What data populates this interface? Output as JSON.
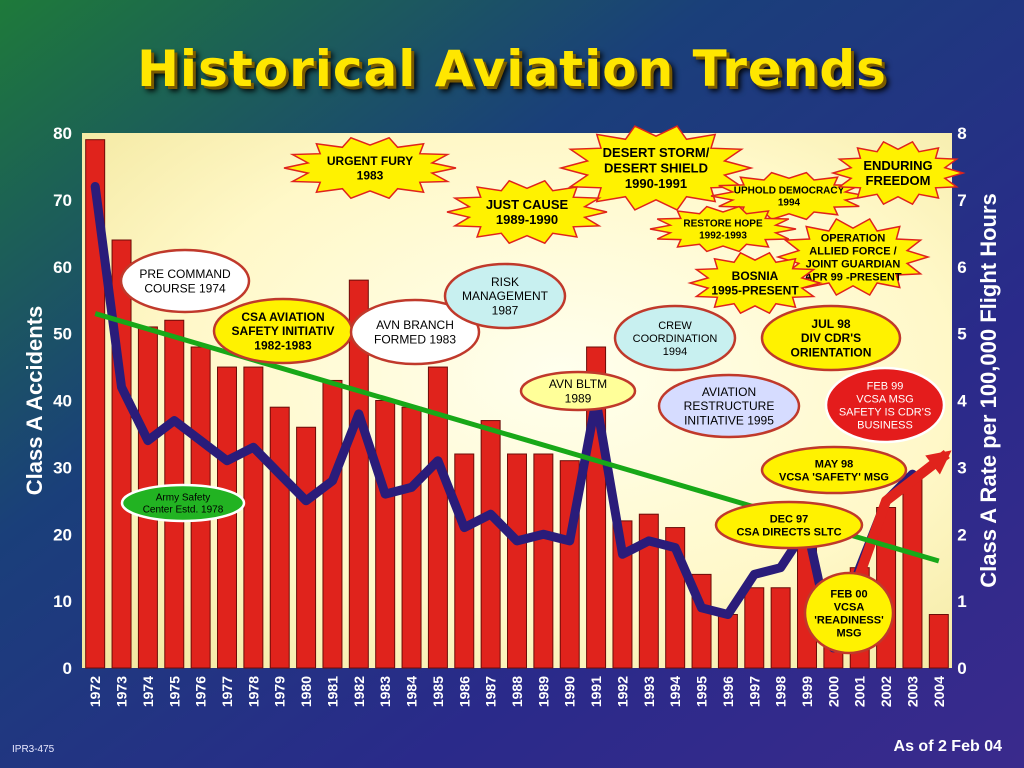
{
  "page": {
    "footer_left": "IPR3-475",
    "footer_right": "As of 2 Feb 04"
  },
  "chart_data": {
    "type": "bar",
    "title": "Historical Aviation Trends",
    "ylabel": "Class A Accidents",
    "ylabel_right": "Class A Rate per 100,000 Flight Hours",
    "ylim": [
      0,
      80
    ],
    "ylim_right": [
      0,
      8
    ],
    "yticks": [
      0,
      10,
      20,
      30,
      40,
      50,
      60,
      70,
      80
    ],
    "yticks_right": [
      0,
      1,
      2,
      3,
      4,
      5,
      6,
      7,
      8
    ],
    "categories": [
      "1972",
      "1973",
      "1974",
      "1975",
      "1976",
      "1977",
      "1978",
      "1979",
      "1980",
      "1981",
      "1982",
      "1983",
      "1984",
      "1985",
      "1986",
      "1987",
      "1988",
      "1989",
      "1990",
      "1991",
      "1992",
      "1993",
      "1994",
      "1995",
      "1996",
      "1997",
      "1998",
      "1999",
      "2000",
      "2001",
      "2002",
      "2003",
      "2004"
    ],
    "series": [
      {
        "values": [
          79,
          64,
          51,
          52,
          48,
          45,
          45,
          39,
          36,
          43,
          58,
          40,
          39,
          45,
          32,
          37,
          32,
          32,
          31,
          48,
          22,
          23,
          21,
          14,
          8,
          12,
          12,
          19,
          6,
          15,
          24,
          29,
          8
        ]
      },
      {
        "axis": "right",
        "values": [
          7.2,
          4.2,
          3.4,
          3.7,
          3.4,
          3.1,
          3.3,
          2.9,
          2.5,
          2.8,
          3.8,
          2.6,
          2.7,
          3.1,
          2.1,
          2.3,
          1.9,
          2.0,
          1.9,
          4.0,
          1.7,
          1.9,
          1.8,
          0.9,
          0.8,
          1.4,
          1.5,
          2.1,
          0.3,
          1.5,
          2.5,
          2.9,
          3.2
        ]
      }
    ],
    "trend": {
      "x": [
        "1972",
        "2004"
      ],
      "y": [
        53,
        16
      ]
    },
    "annotations": [
      {
        "lines": [
          "URGENT FURY",
          "1983"
        ],
        "shape": "burst",
        "fill": "#fff200"
      },
      {
        "lines": [
          "DESERT STORM/",
          "DESERT SHIELD",
          "1990-1991"
        ],
        "shape": "burst",
        "fill": "#fff200"
      },
      {
        "lines": [
          "JUST CAUSE",
          "1989-1990"
        ],
        "shape": "burst",
        "fill": "#fff200"
      },
      {
        "lines": [
          "UPHOLD DEMOCRACY",
          "1994"
        ],
        "shape": "burst",
        "fill": "#fff200"
      },
      {
        "lines": [
          "RESTORE HOPE",
          "1992-1993"
        ],
        "shape": "burst",
        "fill": "#fff200"
      },
      {
        "lines": [
          "ENDURING",
          "FREEDOM"
        ],
        "shape": "burst",
        "fill": "#fff200"
      },
      {
        "lines": [
          "OPERATION",
          "ALLIED FORCE /",
          "JOINT GUARDIAN",
          "APR 99 -PRESENT"
        ],
        "shape": "burst",
        "fill": "#fff200"
      },
      {
        "lines": [
          "BOSNIA",
          "1995-PRESENT"
        ],
        "shape": "burst",
        "fill": "#fff200"
      },
      {
        "lines": [
          "PRE COMMAND",
          "COURSE 1974"
        ],
        "shape": "oval",
        "fill": "#ffffff"
      },
      {
        "lines": [
          "CSA AVIATION",
          "SAFETY INITIATIV",
          "1982-1983"
        ],
        "shape": "oval",
        "fill": "#fff200"
      },
      {
        "lines": [
          "AVN BRANCH",
          "FORMED 1983"
        ],
        "shape": "oval",
        "fill": "#ffffff"
      },
      {
        "lines": [
          "RISK",
          "MANAGEMENT",
          "1987"
        ],
        "shape": "oval",
        "fill": "#c8f0f0"
      },
      {
        "lines": [
          "CREW",
          "COORDINATION",
          "1994"
        ],
        "shape": "oval",
        "fill": "#c8f0f0"
      },
      {
        "lines": [
          "JUL 98",
          "DIV CDR'S",
          "ORIENTATION"
        ],
        "shape": "oval",
        "fill": "#fff200"
      },
      {
        "lines": [
          "AVN BLTM",
          "1989"
        ],
        "shape": "oval",
        "fill": "#ffff99"
      },
      {
        "lines": [
          "AVIATION",
          "RESTRUCTURE",
          "INITIATIVE 1995"
        ],
        "shape": "oval",
        "fill": "#d6dcff"
      },
      {
        "lines": [
          "FEB 99",
          "VCSA  MSG",
          "SAFETY IS CDR'S",
          "BUSINESS"
        ],
        "shape": "oval",
        "fill": "#e41c1c"
      },
      {
        "lines": [
          "MAY 98",
          "VCSA 'SAFETY' MSG"
        ],
        "shape": "oval",
        "fill": "#fff200"
      },
      {
        "lines": [
          "Army Safety",
          "Center Estd. 1978"
        ],
        "shape": "oval",
        "fill": "#22b322"
      },
      {
        "lines": [
          "DEC 97",
          "CSA DIRECTS SLTC"
        ],
        "shape": "oval",
        "fill": "#fff200"
      },
      {
        "lines": [
          "FEB 00",
          "VCSA",
          "'READINESS'",
          "MSG"
        ],
        "shape": "oval",
        "fill": "#fff200"
      }
    ],
    "colors": {
      "bar": "#e0231c",
      "rate_line": "#2a1c7a",
      "trend_line": "#18a818",
      "arrow": "#e0231c",
      "axis_text": "#ffffff",
      "title": "#ffe600"
    }
  }
}
